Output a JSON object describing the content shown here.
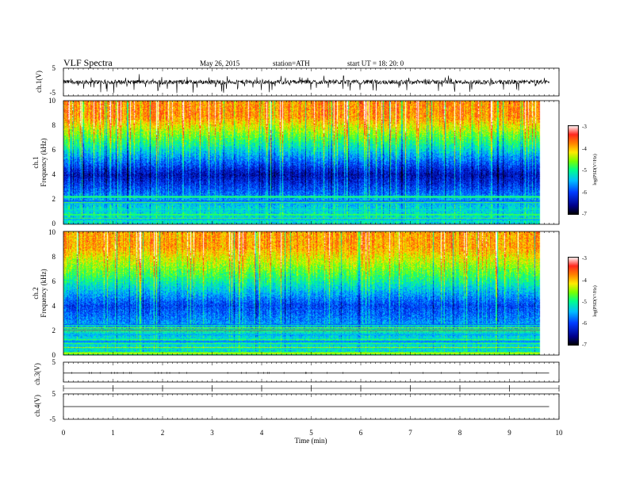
{
  "header": {
    "title": "VLF  Spectra",
    "date": "May 26, 2015",
    "station": "station=ATH",
    "start": "start  UT  =   18: 20: 0"
  },
  "xaxis": {
    "label": "Time  (min)",
    "ticks": [
      "0",
      "1",
      "2",
      "3",
      "4",
      "5",
      "6",
      "7",
      "8",
      "9",
      "10"
    ]
  },
  "panels": {
    "ch1_waveform": {
      "ylabel": "ch.1(V)",
      "ticks": [
        "5",
        "-5"
      ]
    },
    "ch1_spectro": {
      "ylabel1": "ch.1",
      "ylabel2": "Frequency (kHz)",
      "ticks": [
        "10",
        "8",
        "6",
        "4",
        "2",
        "0"
      ]
    },
    "ch2_spectro": {
      "ylabel1": "ch.2",
      "ylabel2": "Frequency (kHz)",
      "ticks": [
        "10",
        "8",
        "6",
        "4",
        "2",
        "0"
      ]
    },
    "ch3_waveform": {
      "ylabel": "ch.3(V)",
      "ticks": [
        "5"
      ]
    },
    "ch4_waveform": {
      "ylabel": "ch.4(V)",
      "ticks": [
        "5",
        "-5"
      ]
    }
  },
  "colorbar": {
    "label": "log(PSD(V²/Hz)",
    "ticks": [
      "-3",
      "-4",
      "-5",
      "-6",
      "-7"
    ],
    "colors": [
      "#ffffff",
      "#ff4040",
      "#ff8000",
      "#ffe000",
      "#80ff00",
      "#00ff80",
      "#00c0ff",
      "#0040ff",
      "#000080",
      "#000000"
    ]
  },
  "chart_data": [
    {
      "type": "line",
      "name": "ch1 waveform",
      "xlim": [
        0,
        10
      ],
      "ylim": [
        -5,
        5
      ],
      "data_end_min": 9.8,
      "description_level": "noisy signal centered near 0 V, spikes reaching about -4 V"
    },
    {
      "type": "heatmap",
      "name": "ch1 spectrogram",
      "xlim": [
        0,
        10
      ],
      "ylim": [
        0,
        10
      ],
      "zlim": [
        -7,
        -3
      ],
      "bands_khz": [
        {
          "range": [
            0,
            2.5
          ],
          "level": -5.3,
          "note": "horizontal line interference"
        },
        {
          "range": [
            2.5,
            5.5
          ],
          "level": -6.4
        },
        {
          "range": [
            5.5,
            7.5
          ],
          "level": -5.0
        },
        {
          "range": [
            7.5,
            10
          ],
          "level": -3.8
        }
      ]
    },
    {
      "type": "heatmap",
      "name": "ch2 spectrogram",
      "xlim": [
        0,
        10
      ],
      "ylim": [
        0,
        10
      ],
      "zlim": [
        -7,
        -3
      ],
      "bands_khz": [
        {
          "range": [
            0,
            2.5
          ],
          "level": -5.3,
          "note": "horizontal line interference"
        },
        {
          "range": [
            2.5,
            5.5
          ],
          "level": -6.0
        },
        {
          "range": [
            5.5,
            7.5
          ],
          "level": -4.8
        },
        {
          "range": [
            7.5,
            10
          ],
          "level": -3.9
        }
      ]
    },
    {
      "type": "line",
      "name": "ch3 waveform",
      "xlim": [
        0,
        10
      ],
      "ylim": [
        -5,
        5
      ],
      "level": 0,
      "data_end_min": 9.8
    },
    {
      "type": "line",
      "name": "ch4 waveform",
      "xlim": [
        0,
        10
      ],
      "ylim": [
        -5,
        5
      ],
      "level": 0,
      "data_end_min": 9.8
    }
  ]
}
